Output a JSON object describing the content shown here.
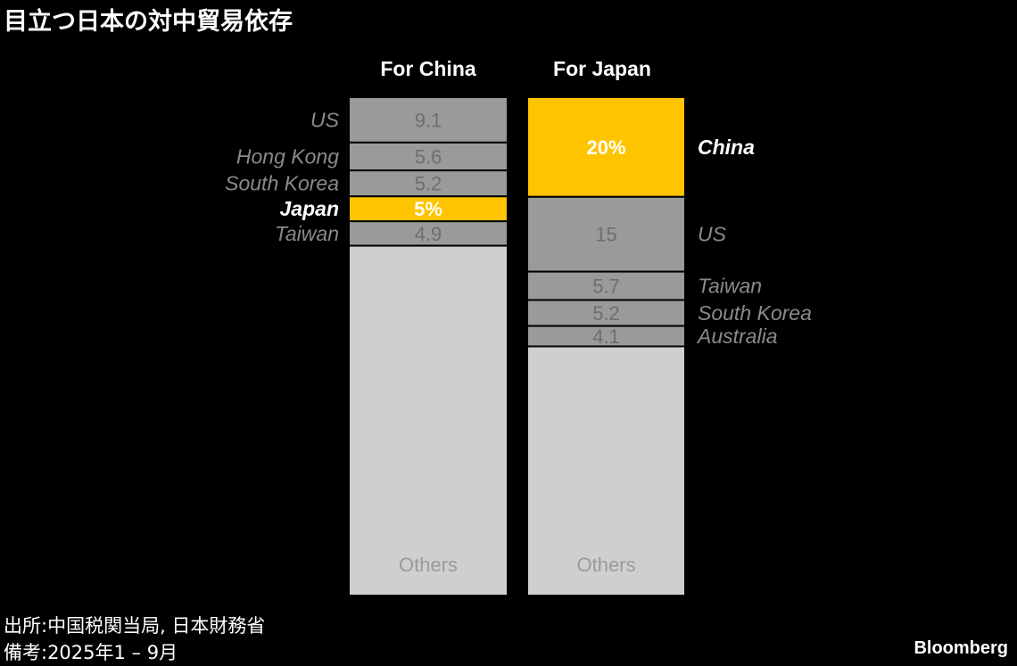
{
  "title": "目立つ日本の対中貿易依存",
  "source_line": "出所:中国税関当局, 日本財務省",
  "note_line": "備考:2025年1 – 9月",
  "brand": "Bloomberg",
  "colors": {
    "highlight": "#FFC400",
    "major": "#9A9A9A",
    "others": "#CFCFCF",
    "label_muted": "#8A8A8A",
    "label_highlight": "#FFFFFF"
  },
  "chart_data": {
    "type": "stacked-bar",
    "unit": "%",
    "columns": [
      {
        "name": "For China",
        "segments": [
          {
            "label": "US",
            "value": 9.1,
            "value_text": "9.1",
            "highlight": false
          },
          {
            "label": "Hong Kong",
            "value": 5.6,
            "value_text": "5.6",
            "highlight": false
          },
          {
            "label": "South Korea",
            "value": 5.2,
            "value_text": "5.2",
            "highlight": false
          },
          {
            "label": "Japan",
            "value": 5,
            "value_text": "5%",
            "highlight": true
          },
          {
            "label": "Taiwan",
            "value": 4.9,
            "value_text": "4.9",
            "highlight": false
          },
          {
            "label": "",
            "value": 70.2,
            "value_text": "Others",
            "others": true
          }
        ]
      },
      {
        "name": "For Japan",
        "segments": [
          {
            "label": "China",
            "value": 20,
            "value_text": "20%",
            "highlight": true
          },
          {
            "label": "US",
            "value": 15,
            "value_text": "15",
            "highlight": false
          },
          {
            "label": "Taiwan",
            "value": 5.7,
            "value_text": "5.7",
            "highlight": false
          },
          {
            "label": "South Korea",
            "value": 5.2,
            "value_text": "5.2",
            "highlight": false
          },
          {
            "label": "Australia",
            "value": 4.1,
            "value_text": "4.1",
            "highlight": false
          },
          {
            "label": "",
            "value": 50,
            "value_text": "Others",
            "others": true
          }
        ]
      }
    ]
  }
}
